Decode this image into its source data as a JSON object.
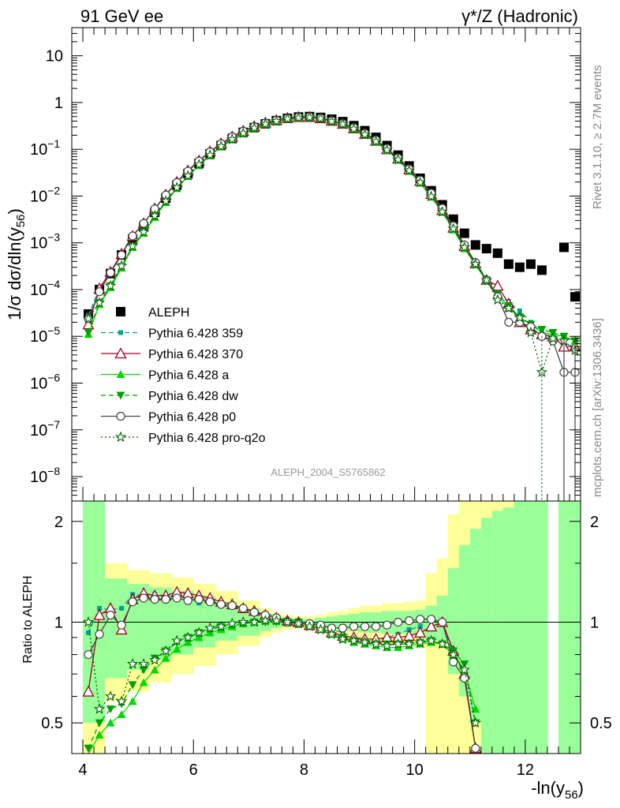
{
  "header": {
    "left": "91 GeV ee",
    "right": "γ*/Z (Hadronic)"
  },
  "side_texts": {
    "rivet": "Rivet 3.1.10, ≥ 2.7M events",
    "mcplots": "mcplots.cern.ch [arXiv:1306.3436]"
  },
  "colors": {
    "aleph": "#000000",
    "p359": "#00a090",
    "p370": "#a00020",
    "a": "#00d800",
    "dw": "#00a000",
    "p0": "#444444",
    "proq2o": "#006000",
    "band_inner": "#99ff99",
    "band_outer": "#ffff99"
  },
  "chart_data": [
    {
      "type": "scatter",
      "title": "",
      "analysis_label": "ALEPH_2004_S5765862",
      "ylabel_text": "1/σ dσ/dln(y",
      "ylabel_sub": "56",
      "ylabel_close": ")",
      "yscale": "log",
      "xlim": [
        3.8,
        13.0
      ],
      "ylim": [
        3e-09,
        40
      ],
      "y_ticks": [
        {
          "v": 1e-08,
          "base": "10",
          "exp": "−8"
        },
        {
          "v": 1e-07,
          "base": "10",
          "exp": "−7"
        },
        {
          "v": 1e-06,
          "base": "10",
          "exp": "−6"
        },
        {
          "v": 1e-05,
          "base": "10",
          "exp": "−5"
        },
        {
          "v": 0.0001,
          "base": "10",
          "exp": "−4"
        },
        {
          "v": 0.001,
          "base": "10",
          "exp": "−3"
        },
        {
          "v": 0.01,
          "base": "10",
          "exp": "−2"
        },
        {
          "v": 0.1,
          "base": "10",
          "exp": "−1"
        },
        {
          "v": 1,
          "base": "1",
          "exp": ""
        },
        {
          "v": 10,
          "base": "10",
          "exp": ""
        }
      ],
      "x": [
        4.1,
        4.3,
        4.5,
        4.7,
        4.9,
        5.1,
        5.3,
        5.5,
        5.7,
        5.9,
        6.1,
        6.3,
        6.5,
        6.7,
        6.9,
        7.1,
        7.3,
        7.5,
        7.7,
        7.9,
        8.1,
        8.3,
        8.5,
        8.7,
        8.9,
        9.1,
        9.3,
        9.5,
        9.7,
        9.9,
        10.1,
        10.3,
        10.5,
        10.7,
        10.9,
        11.1,
        11.3,
        11.5,
        11.7,
        11.9,
        12.1,
        12.3,
        12.5,
        12.7,
        12.9
      ],
      "legend": {
        "placement": "left-middle"
      },
      "series": [
        {
          "name": "ALEPH",
          "marker": "square-filled",
          "line": "none",
          "values": [
            3e-05,
            0.0001,
            0.00022,
            0.00055,
            0.0012,
            0.0022,
            0.0045,
            0.009,
            0.017,
            0.03,
            0.05,
            0.08,
            0.12,
            0.17,
            0.23,
            0.29,
            0.35,
            0.41,
            0.46,
            0.49,
            0.5,
            0.48,
            0.44,
            0.39,
            0.32,
            0.25,
            0.18,
            0.12,
            0.075,
            0.044,
            0.024,
            0.013,
            0.0065,
            0.0032,
            0.0016,
            0.0009,
            0.00075,
            0.0006,
            0.00035,
            0.0003,
            0.00035,
            0.00026,
            null,
            0.0008,
            7e-05
          ]
        },
        {
          "name": "Pythia 6.428 359",
          "marker": "square-small",
          "line": "dashed",
          "values": [
            2.8e-05,
            0.00011,
            0.00024,
            0.0006,
            0.00145,
            0.0026,
            0.0054,
            0.0107,
            0.0198,
            0.035,
            0.057,
            0.09,
            0.134,
            0.187,
            0.25,
            0.31,
            0.37,
            0.425,
            0.47,
            0.495,
            0.5,
            0.47,
            0.41,
            0.355,
            0.285,
            0.215,
            0.155,
            0.102,
            0.063,
            0.037,
            0.021,
            0.011,
            0.0052,
            0.0022,
            0.00085,
            0.00038,
            0.00017,
            8e-05,
            5.5e-05,
            3.5e-05,
            2e-05,
            1.2e-05,
            9e-06,
            7e-06,
            6e-06
          ]
        },
        {
          "name": "Pythia 6.428 370",
          "marker": "triangle-up-open",
          "line": "solid",
          "values": [
            1.8e-05,
            0.000105,
            0.00024,
            0.00058,
            0.0014,
            0.0026,
            0.0054,
            0.0107,
            0.02,
            0.035,
            0.057,
            0.09,
            0.133,
            0.186,
            0.248,
            0.31,
            0.37,
            0.42,
            0.465,
            0.49,
            0.49,
            0.46,
            0.405,
            0.35,
            0.28,
            0.212,
            0.152,
            0.1,
            0.063,
            0.037,
            0.021,
            0.011,
            0.005,
            0.0021,
            0.00085,
            0.00036,
            0.00016,
            0.00012,
            5e-05,
            2e-05,
            1.4e-05,
            1.1e-05,
            1e-05,
            6e-06,
            6e-06
          ]
        },
        {
          "name": "Pythia 6.428 a",
          "marker": "triangle-up-filled",
          "line": "solid",
          "values": [
            1.1e-05,
            4.8e-05,
            0.00011,
            0.00029,
            0.0008,
            0.0016,
            0.0035,
            0.0073,
            0.0145,
            0.0265,
            0.045,
            0.073,
            0.113,
            0.16,
            0.215,
            0.28,
            0.34,
            0.39,
            0.44,
            0.465,
            0.475,
            0.45,
            0.39,
            0.34,
            0.27,
            0.205,
            0.145,
            0.095,
            0.059,
            0.034,
            0.019,
            0.0095,
            0.0045,
            0.0019,
            0.00075,
            0.00034,
            0.00015,
            7e-05,
            4e-05,
            2.5e-05,
            1.8e-05,
            1.2e-05,
            1.1e-05,
            1e-05,
            8e-06
          ]
        },
        {
          "name": "Pythia 6.428 dw",
          "marker": "triangle-down-filled",
          "line": "dashed",
          "values": [
            1.2e-05,
            5.2e-05,
            0.00012,
            0.00031,
            0.00085,
            0.0017,
            0.0037,
            0.0077,
            0.015,
            0.027,
            0.046,
            0.074,
            0.115,
            0.162,
            0.218,
            0.282,
            0.345,
            0.395,
            0.445,
            0.47,
            0.48,
            0.452,
            0.392,
            0.342,
            0.272,
            0.205,
            0.146,
            0.096,
            0.06,
            0.035,
            0.0195,
            0.0098,
            0.0046,
            0.002,
            0.0008,
            0.00035,
            0.00016,
            8e-05,
            4.5e-05,
            2.6e-05,
            1.8e-05,
            1.4e-05,
            1.2e-05,
            1e-05,
            8e-06
          ]
        },
        {
          "name": "Pythia 6.428 p0",
          "marker": "circle-open",
          "line": "solid",
          "values": [
            2.4e-05,
            9e-05,
            0.00023,
            0.00055,
            0.0014,
            0.0026,
            0.0053,
            0.0105,
            0.0195,
            0.034,
            0.056,
            0.088,
            0.132,
            0.185,
            0.245,
            0.305,
            0.365,
            0.42,
            0.46,
            0.49,
            0.495,
            0.465,
            0.41,
            0.355,
            0.29,
            0.22,
            0.158,
            0.105,
            0.065,
            0.038,
            0.022,
            0.0115,
            0.0055,
            0.0023,
            0.0009,
            0.00038,
            0.00016,
            7e-05,
            2e-05,
            2e-05,
            1.6e-05,
            1e-05,
            8e-06,
            1.7e-06,
            1.7e-06
          ]
        },
        {
          "name": "Pythia 6.428 pro-q2o",
          "marker": "star-open",
          "line": "dotted",
          "values": [
            2.4e-05,
            5.2e-05,
            0.00012,
            0.00032,
            0.00085,
            0.0017,
            0.0038,
            0.0078,
            0.0152,
            0.027,
            0.047,
            0.075,
            0.116,
            0.163,
            0.22,
            0.285,
            0.347,
            0.4,
            0.448,
            0.472,
            0.48,
            0.455,
            0.395,
            0.345,
            0.273,
            0.206,
            0.147,
            0.097,
            0.06,
            0.035,
            0.0195,
            0.0098,
            0.0046,
            0.002,
            0.0008,
            0.00035,
            0.00016,
            6e-05,
            4e-05,
            2.5e-05,
            1.2e-05,
            1.7e-06,
            9e-06,
            8e-06,
            5e-06
          ]
        }
      ]
    },
    {
      "type": "scatter",
      "title": "",
      "ylabel": "Ratio to ALEPH",
      "xlabel_text": "-ln(y",
      "xlabel_sub": "56",
      "xlabel_close": ")",
      "yscale": "log",
      "xlim": [
        3.8,
        13.0
      ],
      "ylim": [
        0.405,
        2.3
      ],
      "x_ticks": [
        4,
        6,
        8,
        10,
        12
      ],
      "y_ticks": [
        0.5,
        1,
        2
      ],
      "reference_line": 1,
      "x": [
        4.1,
        4.3,
        4.5,
        4.7,
        4.9,
        5.1,
        5.3,
        5.5,
        5.7,
        5.9,
        6.1,
        6.3,
        6.5,
        6.7,
        6.9,
        7.1,
        7.3,
        7.5,
        7.7,
        7.9,
        8.1,
        8.3,
        8.5,
        8.7,
        8.9,
        9.1,
        9.3,
        9.5,
        9.7,
        9.9,
        10.1,
        10.3,
        10.5,
        10.7,
        10.9,
        11.1,
        11.3,
        11.5,
        11.7,
        11.9,
        12.1,
        12.3,
        12.5,
        12.7,
        12.9
      ],
      "bands": {
        "inner_lo": [
          0.5,
          0.5,
          0.68,
          0.68,
          0.72,
          0.72,
          0.77,
          0.77,
          0.8,
          0.8,
          0.84,
          0.84,
          0.88,
          0.88,
          0.91,
          0.91,
          0.94,
          0.96,
          0.97,
          0.98,
          0.98,
          0.97,
          0.96,
          0.95,
          0.94,
          0.93,
          0.93,
          0.92,
          0.92,
          0.92,
          0.92,
          0.88,
          0.88,
          0.7,
          0.6,
          0.5,
          0.4,
          0.4,
          0.4,
          0.4,
          0.4,
          0.4,
          null,
          0.4,
          0.4
        ],
        "inner_hi": [
          2.3,
          2.3,
          1.35,
          1.35,
          1.3,
          1.3,
          1.27,
          1.27,
          1.24,
          1.24,
          1.2,
          1.2,
          1.15,
          1.15,
          1.1,
          1.1,
          1.06,
          1.04,
          1.03,
          1.02,
          1.02,
          1.03,
          1.04,
          1.05,
          1.06,
          1.07,
          1.07,
          1.08,
          1.08,
          1.08,
          1.09,
          1.12,
          1.2,
          1.45,
          1.7,
          1.9,
          2.05,
          2.15,
          2.2,
          2.3,
          2.3,
          2.3,
          null,
          2.3,
          2.3
        ],
        "outer_lo": [
          0.4,
          0.4,
          0.58,
          0.58,
          0.62,
          0.62,
          0.66,
          0.66,
          0.7,
          0.7,
          0.74,
          0.74,
          0.8,
          0.8,
          0.85,
          0.85,
          0.9,
          0.93,
          0.95,
          0.96,
          0.96,
          0.95,
          0.93,
          0.92,
          0.9,
          0.88,
          0.88,
          0.86,
          0.86,
          0.85,
          0.84,
          0.4,
          0.4,
          0.4,
          0.4,
          0.4,
          0.4,
          0.4,
          0.4,
          0.4,
          0.4,
          0.4,
          null,
          0.4,
          0.4
        ],
        "outer_hi": [
          2.3,
          2.3,
          1.5,
          1.5,
          1.43,
          1.43,
          1.4,
          1.4,
          1.36,
          1.36,
          1.3,
          1.3,
          1.24,
          1.24,
          1.16,
          1.16,
          1.1,
          1.07,
          1.05,
          1.04,
          1.04,
          1.05,
          1.07,
          1.08,
          1.1,
          1.12,
          1.12,
          1.14,
          1.14,
          1.15,
          1.16,
          1.4,
          1.55,
          2.1,
          2.3,
          2.3,
          2.3,
          2.3,
          2.3,
          2.3,
          2.3,
          2.3,
          null,
          2.3,
          2.3
        ]
      },
      "series": [
        {
          "name": "Pythia 6.428 359",
          "values": [
            0.93,
            1.1,
            1.09,
            1.1,
            1.21,
            1.2,
            1.21,
            1.2,
            1.18,
            1.19,
            1.14,
            1.14,
            1.13,
            1.11,
            1.1,
            1.07,
            1.06,
            1.04,
            1.02,
            1.01,
            1.0,
            0.98,
            0.95,
            0.93,
            0.9,
            0.88,
            0.88,
            0.9,
            0.92,
            0.95,
            0.97,
            1.02,
            0.99,
            0.8,
            0.7,
            0.42,
            null,
            null,
            null,
            null,
            null,
            null,
            null,
            null,
            null
          ]
        },
        {
          "name": "Pythia 6.428 370",
          "values": [
            0.62,
            1.05,
            1.1,
            0.95,
            1.17,
            1.22,
            1.2,
            1.2,
            1.23,
            1.22,
            1.2,
            1.18,
            1.15,
            1.13,
            1.1,
            1.08,
            1.05,
            1.03,
            1.01,
            1.0,
            0.98,
            0.96,
            0.93,
            0.91,
            0.9,
            0.89,
            0.89,
            0.9,
            0.9,
            0.91,
            0.93,
            0.97,
            1.0,
            0.82,
            0.7,
            0.42,
            null,
            null,
            null,
            null,
            null,
            null,
            null,
            null,
            null
          ]
        },
        {
          "name": "Pythia 6.428 a",
          "values": [
            0.38,
            0.46,
            0.5,
            0.53,
            0.58,
            0.66,
            0.72,
            0.78,
            0.83,
            0.87,
            0.9,
            0.93,
            0.95,
            0.97,
            0.99,
            1.0,
            1.01,
            1.01,
            1.01,
            1.0,
            0.98,
            0.95,
            0.92,
            0.89,
            0.87,
            0.86,
            0.85,
            0.84,
            0.84,
            0.85,
            0.86,
            0.87,
            0.86,
            0.8,
            0.72,
            0.55,
            null,
            null,
            null,
            null,
            null,
            null,
            null,
            null,
            null
          ]
        },
        {
          "name": "Pythia 6.428 dw",
          "values": [
            0.42,
            0.5,
            0.55,
            0.57,
            0.65,
            0.72,
            0.78,
            0.82,
            0.87,
            0.9,
            0.93,
            0.95,
            0.97,
            0.98,
            0.99,
            1.0,
            1.0,
            1.0,
            1.0,
            1.0,
            0.98,
            0.96,
            0.93,
            0.9,
            0.88,
            0.87,
            0.86,
            0.86,
            0.86,
            0.86,
            0.87,
            0.88,
            0.86,
            0.82,
            0.75,
            0.5,
            null,
            null,
            null,
            null,
            null,
            null,
            null,
            null,
            null
          ]
        },
        {
          "name": "Pythia 6.428 p0",
          "values": [
            0.8,
            0.92,
            1.05,
            0.98,
            1.15,
            1.18,
            1.17,
            1.17,
            1.18,
            1.16,
            1.17,
            1.15,
            1.13,
            1.12,
            1.1,
            1.07,
            1.05,
            1.03,
            1.0,
            0.99,
            0.99,
            0.98,
            0.96,
            0.96,
            0.97,
            0.97,
            0.97,
            0.98,
            1.0,
            1.01,
            1.02,
            1.02,
            1.0,
            0.76,
            0.68,
            0.42,
            null,
            null,
            null,
            null,
            null,
            null,
            null,
            null,
            null
          ]
        },
        {
          "name": "Pythia 6.428 pro-q2o",
          "values": [
            1.0,
            0.55,
            0.6,
            0.58,
            0.75,
            0.75,
            0.77,
            0.82,
            0.88,
            0.9,
            0.93,
            0.96,
            0.97,
            0.99,
            1.0,
            1.0,
            1.01,
            1.01,
            1.0,
            0.99,
            0.97,
            0.95,
            0.92,
            0.89,
            0.88,
            0.87,
            0.86,
            0.85,
            0.86,
            0.86,
            0.87,
            0.88,
            0.86,
            0.8,
            0.72,
            0.5,
            null,
            null,
            null,
            null,
            null,
            null,
            null,
            null,
            null
          ]
        }
      ]
    }
  ]
}
